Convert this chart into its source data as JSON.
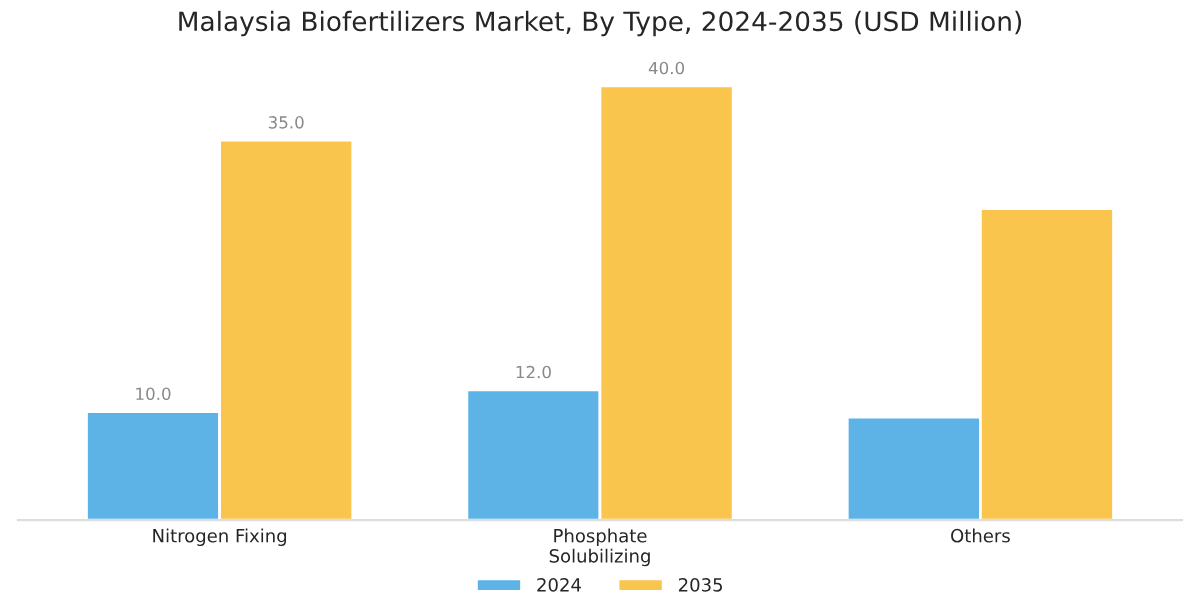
{
  "chart_data": {
    "type": "bar",
    "title": "Malaysia Biofertilizers Market, By Type, 2024-2035 (USD Million)",
    "categories": [
      "Nitrogen Fixing",
      "Phosphate\nSolubilizing",
      "Others"
    ],
    "series": [
      {
        "name": "2024",
        "color": "#5db3e6",
        "values": [
          10.0,
          12.0,
          9.5
        ],
        "value_labels": [
          "10.0",
          "12.0",
          null
        ]
      },
      {
        "name": "2035",
        "color": "#f9c54c",
        "values": [
          35.0,
          40.0,
          28.7
        ],
        "value_labels": [
          "35.0",
          "40.0",
          null
        ]
      }
    ],
    "grid": false,
    "legend": "bottom"
  }
}
